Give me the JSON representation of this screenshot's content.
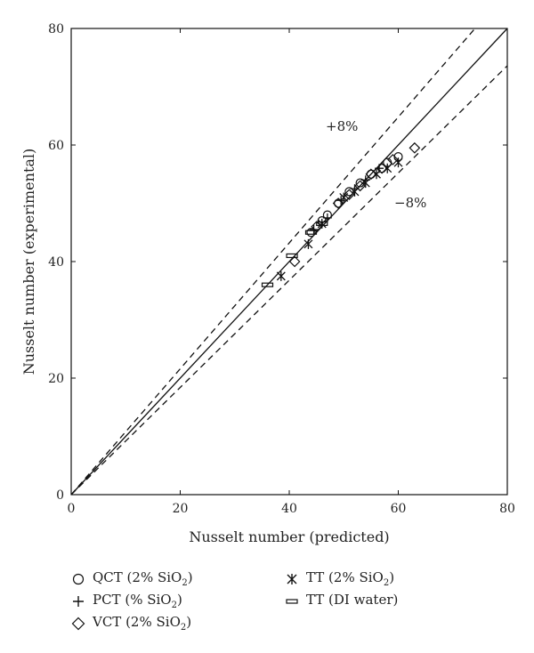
{
  "chart_data": {
    "type": "scatter",
    "xlabel": "Nusselt number (predicted)",
    "ylabel": "Nusselt number (experimental)",
    "xlim": [
      0,
      80
    ],
    "ylim": [
      0,
      80
    ],
    "xticks": [
      0,
      20,
      40,
      60,
      80
    ],
    "yticks": [
      0,
      20,
      40,
      60,
      80
    ],
    "grid": false,
    "reference_lines": [
      {
        "label": "",
        "slope": 1.0,
        "style": "solid"
      },
      {
        "label": "+8%",
        "slope": 1.08,
        "style": "dashed"
      },
      {
        "label": "−8%",
        "slope": 0.92,
        "style": "dashed"
      }
    ],
    "series": [
      {
        "name_pre": "QCT (2% SiO",
        "name_sub": "2",
        "name_post": ")",
        "marker": "circle",
        "points": [
          [
            44,
            45
          ],
          [
            46,
            47
          ],
          [
            47,
            48
          ],
          [
            49,
            50
          ],
          [
            51,
            52
          ],
          [
            53,
            53.5
          ],
          [
            55,
            55
          ],
          [
            57,
            56
          ],
          [
            58,
            57
          ],
          [
            60,
            58
          ]
        ]
      },
      {
        "name_pre": "PCT (% SiO",
        "name_sub": "2",
        "name_post": ")",
        "marker": "plus",
        "points": [
          [
            44.5,
            45.5
          ],
          [
            47,
            47.5
          ],
          [
            49.5,
            50.5
          ],
          [
            52,
            52.5
          ],
          [
            54,
            54
          ],
          [
            56.5,
            56
          ]
        ]
      },
      {
        "name_pre": "VCT (2% SiO",
        "name_sub": "2",
        "name_post": ")",
        "marker": "diamond",
        "points": [
          [
            41,
            40
          ],
          [
            45,
            46
          ],
          [
            49,
            50
          ],
          [
            51,
            51.5
          ],
          [
            53,
            53
          ],
          [
            55,
            55
          ],
          [
            57,
            56
          ],
          [
            59,
            57.5
          ],
          [
            63,
            59.5
          ]
        ]
      },
      {
        "name_pre": "TT (2% SiO",
        "name_sub": "2",
        "name_post": ")",
        "marker": "asterisk",
        "points": [
          [
            38.5,
            37.5
          ],
          [
            43.5,
            43
          ],
          [
            46,
            46.5
          ],
          [
            50,
            51
          ],
          [
            52,
            52
          ],
          [
            54,
            53.5
          ],
          [
            56,
            55
          ],
          [
            58,
            56
          ],
          [
            60,
            57
          ]
        ]
      },
      {
        "name_pre": "TT (DI water)",
        "name_sub": "",
        "name_post": "",
        "marker": "dash",
        "points": [
          [
            36,
            36
          ],
          [
            40.5,
            41
          ],
          [
            44,
            45
          ],
          [
            46,
            46.5
          ]
        ]
      }
    ]
  }
}
